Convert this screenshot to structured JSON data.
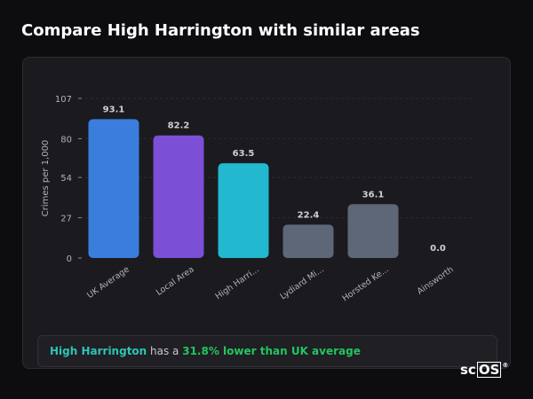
{
  "page": {
    "title": "Compare High Harrington with similar areas"
  },
  "summary": {
    "area_name": "High Harrington",
    "middle_text": " has a ",
    "stat_text": "31.8% lower than UK average"
  },
  "logo": {
    "text_sc": "sc",
    "text_os": "OS",
    "mark": "®"
  },
  "colors": {
    "uk": "#3b7ddd",
    "local": "#7b4fd6",
    "area": "#22b8cf",
    "others": "#5d6778"
  },
  "chart_data": {
    "type": "bar",
    "ylabel": "Crimes per 1,000",
    "xlabel": "",
    "ylim": [
      0,
      107
    ],
    "yticks": [
      0,
      27,
      54,
      80,
      107
    ],
    "grid": true,
    "categories": [
      "UK Average",
      "Local Area",
      "High Harri...",
      "Lydiard Mi...",
      "Horsted Ke...",
      "Ainsworth"
    ],
    "values": [
      93.1,
      82.2,
      63.5,
      22.4,
      36.1,
      0.0
    ],
    "value_labels": [
      "93.1",
      "82.2",
      "63.5",
      "22.4",
      "36.1",
      "0.0"
    ],
    "bar_colors": [
      "#3b7ddd",
      "#7b4fd6",
      "#22b8cf",
      "#5d6778",
      "#5d6778",
      "#5d6778"
    ]
  }
}
